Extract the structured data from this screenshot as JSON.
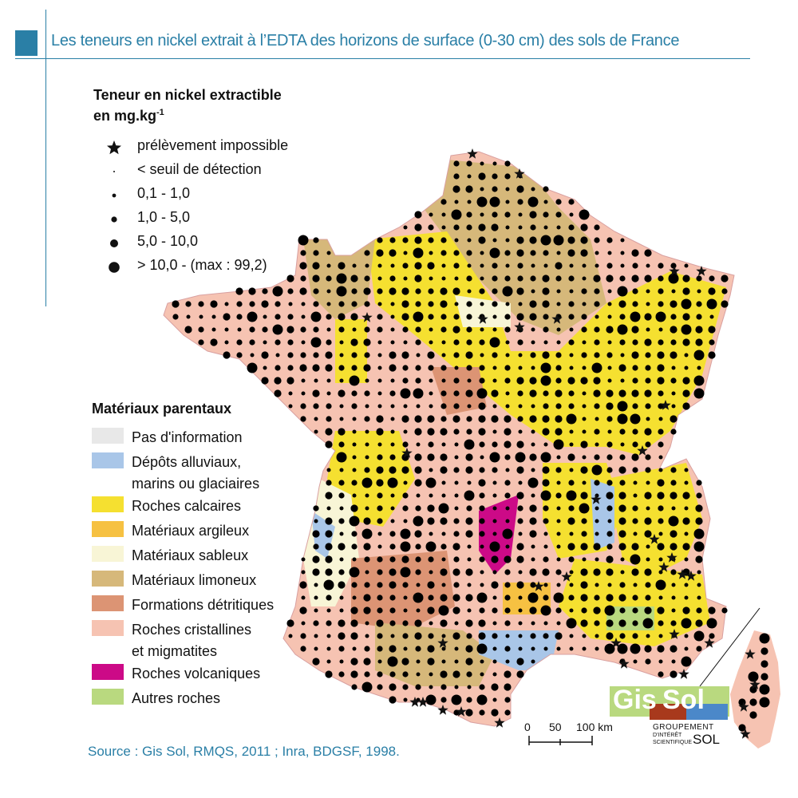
{
  "header": {
    "title": "Les teneurs en nickel extrait à l’EDTA des horizons de surface (0-30 cm) des sols de France"
  },
  "nickel_legend": {
    "title_line1": "Teneur en nickel extractible",
    "title_line2": "en mg.kg",
    "title_sup": "-1",
    "items": [
      {
        "symbol": "star",
        "label": "prélèvement impossible"
      },
      {
        "symbol": "tiny-dot",
        "label": "< seuil de détection"
      },
      {
        "symbol": "dot-xs",
        "label": "0,1 - 1,0"
      },
      {
        "symbol": "dot-s",
        "label": "1,0 - 5,0"
      },
      {
        "symbol": "dot-m",
        "label": "5,0 - 10,0"
      },
      {
        "symbol": "dot-l",
        "label": "> 10,0 - (max : 99,2)"
      }
    ]
  },
  "materials_legend": {
    "title": "Matériaux parentaux",
    "items": [
      {
        "label_lines": [
          "Pas d'information"
        ],
        "color": "#e8e8e8"
      },
      {
        "label_lines": [
          "Dépôts alluviaux,",
          "marins ou glaciaires"
        ],
        "color": "#a9c6e8"
      },
      {
        "label_lines": [
          "Roches calcaires"
        ],
        "color": "#f5e030"
      },
      {
        "label_lines": [
          "Matériaux argileux"
        ],
        "color": "#f6c142"
      },
      {
        "label_lines": [
          "Matériaux sableux"
        ],
        "color": "#f8f5d6"
      },
      {
        "label_lines": [
          "Matériaux limoneux"
        ],
        "color": "#d6b87a"
      },
      {
        "label_lines": [
          "Formations détritiques"
        ],
        "color": "#dc9474"
      },
      {
        "label_lines": [
          "Roches cristallines",
          "et migmatites"
        ],
        "color": "#f6c3b2"
      },
      {
        "label_lines": [
          "Roches volcaniques"
        ],
        "color": "#cc0a87"
      },
      {
        "label_lines": [
          "Autres roches"
        ],
        "color": "#b9d97f"
      }
    ]
  },
  "scale_bar": {
    "labels": [
      "0",
      "50",
      "100 km"
    ]
  },
  "logo": {
    "part1": "Gis",
    "part2": "Sol",
    "line1": "GROUPEMENT",
    "line2": "D'INTÉRÊT",
    "line3": "SCIENTIFIQUE",
    "sol": "SOL"
  },
  "source": "Source : Gis Sol, RMQS, 2011 ; Inra, BDGSF, 1998.",
  "colors": {
    "accent": "#2a7fa6",
    "dot": "#000000"
  }
}
